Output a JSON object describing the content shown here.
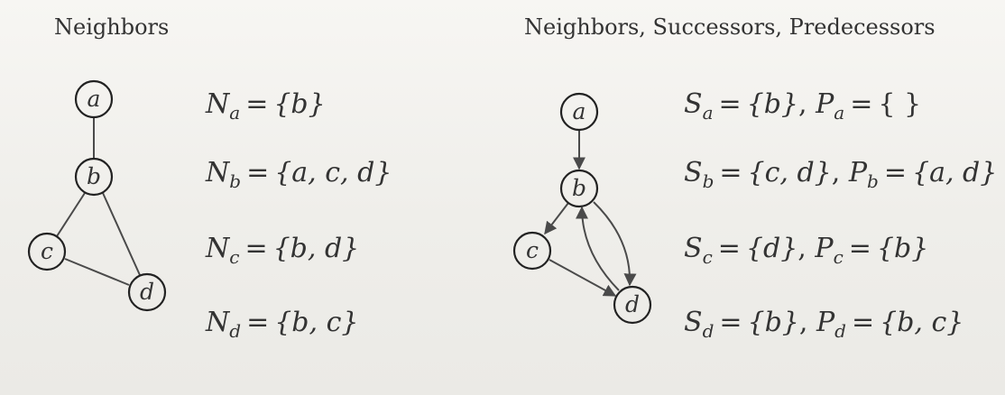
{
  "undirected": {
    "title": "Neighbors",
    "nodes": [
      {
        "id": "a",
        "label": "a"
      },
      {
        "id": "b",
        "label": "b"
      },
      {
        "id": "c",
        "label": "c"
      },
      {
        "id": "d",
        "label": "d"
      }
    ],
    "edges": [
      [
        "a",
        "b"
      ],
      [
        "b",
        "c"
      ],
      [
        "b",
        "d"
      ],
      [
        "c",
        "d"
      ]
    ],
    "equations": [
      {
        "set_symbol": "N",
        "node": "a",
        "members": "{b}"
      },
      {
        "set_symbol": "N",
        "node": "b",
        "members": "{a, c, d}"
      },
      {
        "set_symbol": "N",
        "node": "c",
        "members": "{b, d}"
      },
      {
        "set_symbol": "N",
        "node": "d",
        "members": "{b, c}"
      }
    ]
  },
  "directed": {
    "title": "Neighbors, Successors, Predecessors",
    "nodes": [
      {
        "id": "a",
        "label": "a"
      },
      {
        "id": "b",
        "label": "b"
      },
      {
        "id": "c",
        "label": "c"
      },
      {
        "id": "d",
        "label": "d"
      }
    ],
    "edges": [
      [
        "a",
        "b"
      ],
      [
        "b",
        "c"
      ],
      [
        "b",
        "d"
      ],
      [
        "c",
        "d"
      ],
      [
        "d",
        "b"
      ]
    ],
    "equations": [
      {
        "node": "a",
        "S_symbol": "S",
        "successors": "{b}",
        "P_symbol": "P",
        "predecessors": "{ }"
      },
      {
        "node": "b",
        "S_symbol": "S",
        "successors": "{c, d}",
        "P_symbol": "P",
        "predecessors": "{a, d}"
      },
      {
        "node": "c",
        "S_symbol": "S",
        "successors": "{d}",
        "P_symbol": "P",
        "predecessors": "{b}"
      },
      {
        "node": "d",
        "S_symbol": "S",
        "successors": "{b}",
        "P_symbol": "P",
        "predecessors": "{b, c}"
      }
    ]
  }
}
